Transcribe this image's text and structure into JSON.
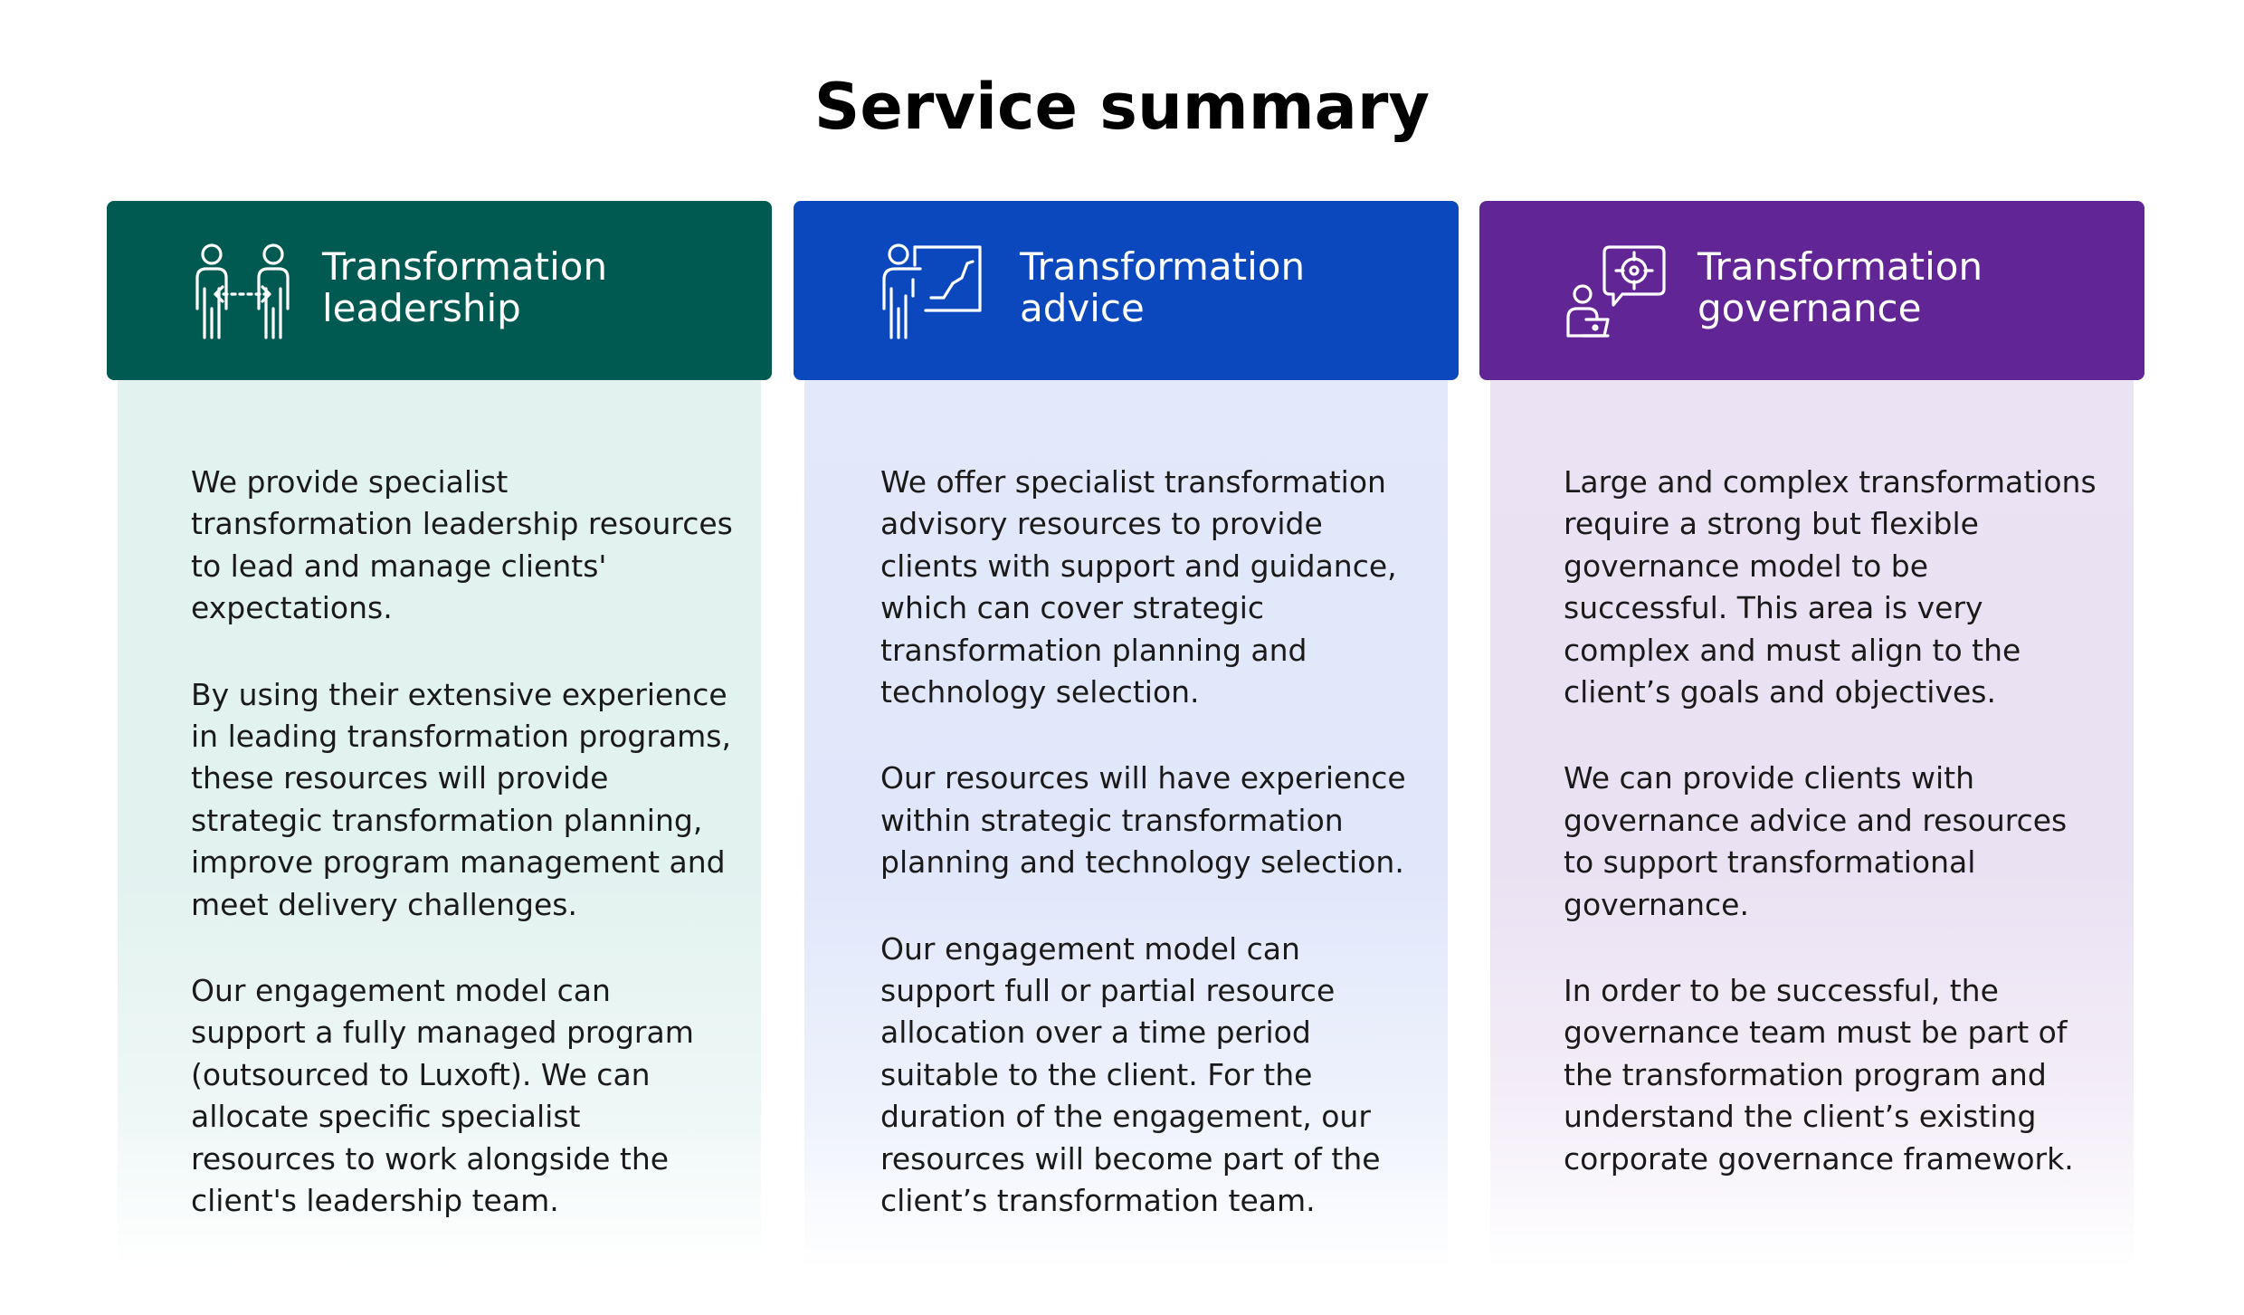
{
  "page": {
    "title": "Service summary"
  },
  "cards": [
    {
      "title_line1": "Transformation",
      "title_line2": "leadership",
      "icon": "two-people-exchange-icon",
      "color": "#005a52",
      "paragraphs": [
        "We provide specialist transformation leadership resources to lead and manage clients' expectations.",
        "By using their extensive experience in leading transformation programs, these resources will provide strategic transformation planning, improve program management and meet delivery challenges.",
        "Our engagement model can support a fully managed program (outsourced to Luxoft). We can allocate specific specialist resources to work alongside the client's leadership team."
      ]
    },
    {
      "title_line1": "Transformation",
      "title_line2": "advice",
      "icon": "presenter-chart-icon",
      "color": "#0b48be",
      "paragraphs": [
        "We offer specialist transformation advisory resources to provide clients with support and guidance, which can cover strategic transformation planning and technology selection.",
        "Our resources will have experience within strategic transformation planning and technology selection.",
        "Our engagement model can support full or partial resource allocation over a time period suitable to the client. For the duration of the engagement, our resources will become part of the client’s transformation team."
      ]
    },
    {
      "title_line1": "Transformation",
      "title_line2": "governance",
      "icon": "person-target-speech-icon",
      "color": "#612596",
      "paragraphs": [
        "Large and complex transformations require a strong but flexible governance model to be successful. This area is very complex and must align to the client’s goals and objectives.",
        "We can provide clients with governance advice and resources to support transformational governance.",
        "In order to be successful, the governance team must be part of the transformation program and understand the client’s existing corporate governance framework."
      ]
    }
  ]
}
